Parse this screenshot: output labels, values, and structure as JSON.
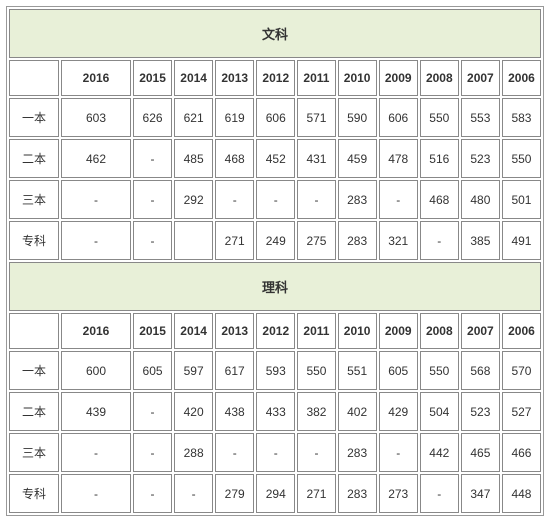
{
  "sections": [
    {
      "title": "文科",
      "years": [
        "2016",
        "2015",
        "2014",
        "2013",
        "2012",
        "2011",
        "2010",
        "2009",
        "2008",
        "2007",
        "2006"
      ],
      "rows": [
        {
          "label": "一本",
          "cells": [
            "603",
            "626",
            "621",
            "619",
            "606",
            "571",
            "590",
            "606",
            "550",
            "553",
            "583"
          ]
        },
        {
          "label": "二本",
          "cells": [
            "462",
            "-",
            "485",
            "468",
            "452",
            "431",
            "459",
            "478",
            "516",
            "523",
            "550"
          ]
        },
        {
          "label": "三本",
          "cells": [
            "-",
            "-",
            "292",
            "-",
            "-",
            "-",
            "283",
            "-",
            "468",
            "480",
            "501"
          ]
        },
        {
          "label": "专科",
          "cells": [
            "-",
            "-",
            "",
            "271",
            "249",
            "275",
            "283",
            "321",
            "-",
            "385",
            "491"
          ]
        }
      ]
    },
    {
      "title": "理科",
      "years": [
        "2016",
        "2015",
        "2014",
        "2013",
        "2012",
        "2011",
        "2010",
        "2009",
        "2008",
        "2007",
        "2006"
      ],
      "rows": [
        {
          "label": "一本",
          "cells": [
            "600",
            "605",
            "597",
            "617",
            "593",
            "550",
            "551",
            "605",
            "550",
            "568",
            "570"
          ]
        },
        {
          "label": "二本",
          "cells": [
            "439",
            "-",
            "420",
            "438",
            "433",
            "382",
            "402",
            "429",
            "504",
            "523",
            "527"
          ]
        },
        {
          "label": "三本",
          "cells": [
            "-",
            "-",
            "288",
            "-",
            "-",
            "-",
            "283",
            "-",
            "442",
            "465",
            "466"
          ]
        },
        {
          "label": "专科",
          "cells": [
            "-",
            "-",
            "-",
            "279",
            "294",
            "271",
            "283",
            "273",
            "-",
            "347",
            "448"
          ]
        }
      ]
    }
  ],
  "styling": {
    "header_bg": "#e8f0d8",
    "border_color": "#888888",
    "text_color": "#333333",
    "font_size_cell": 12,
    "font_size_header": 13
  }
}
